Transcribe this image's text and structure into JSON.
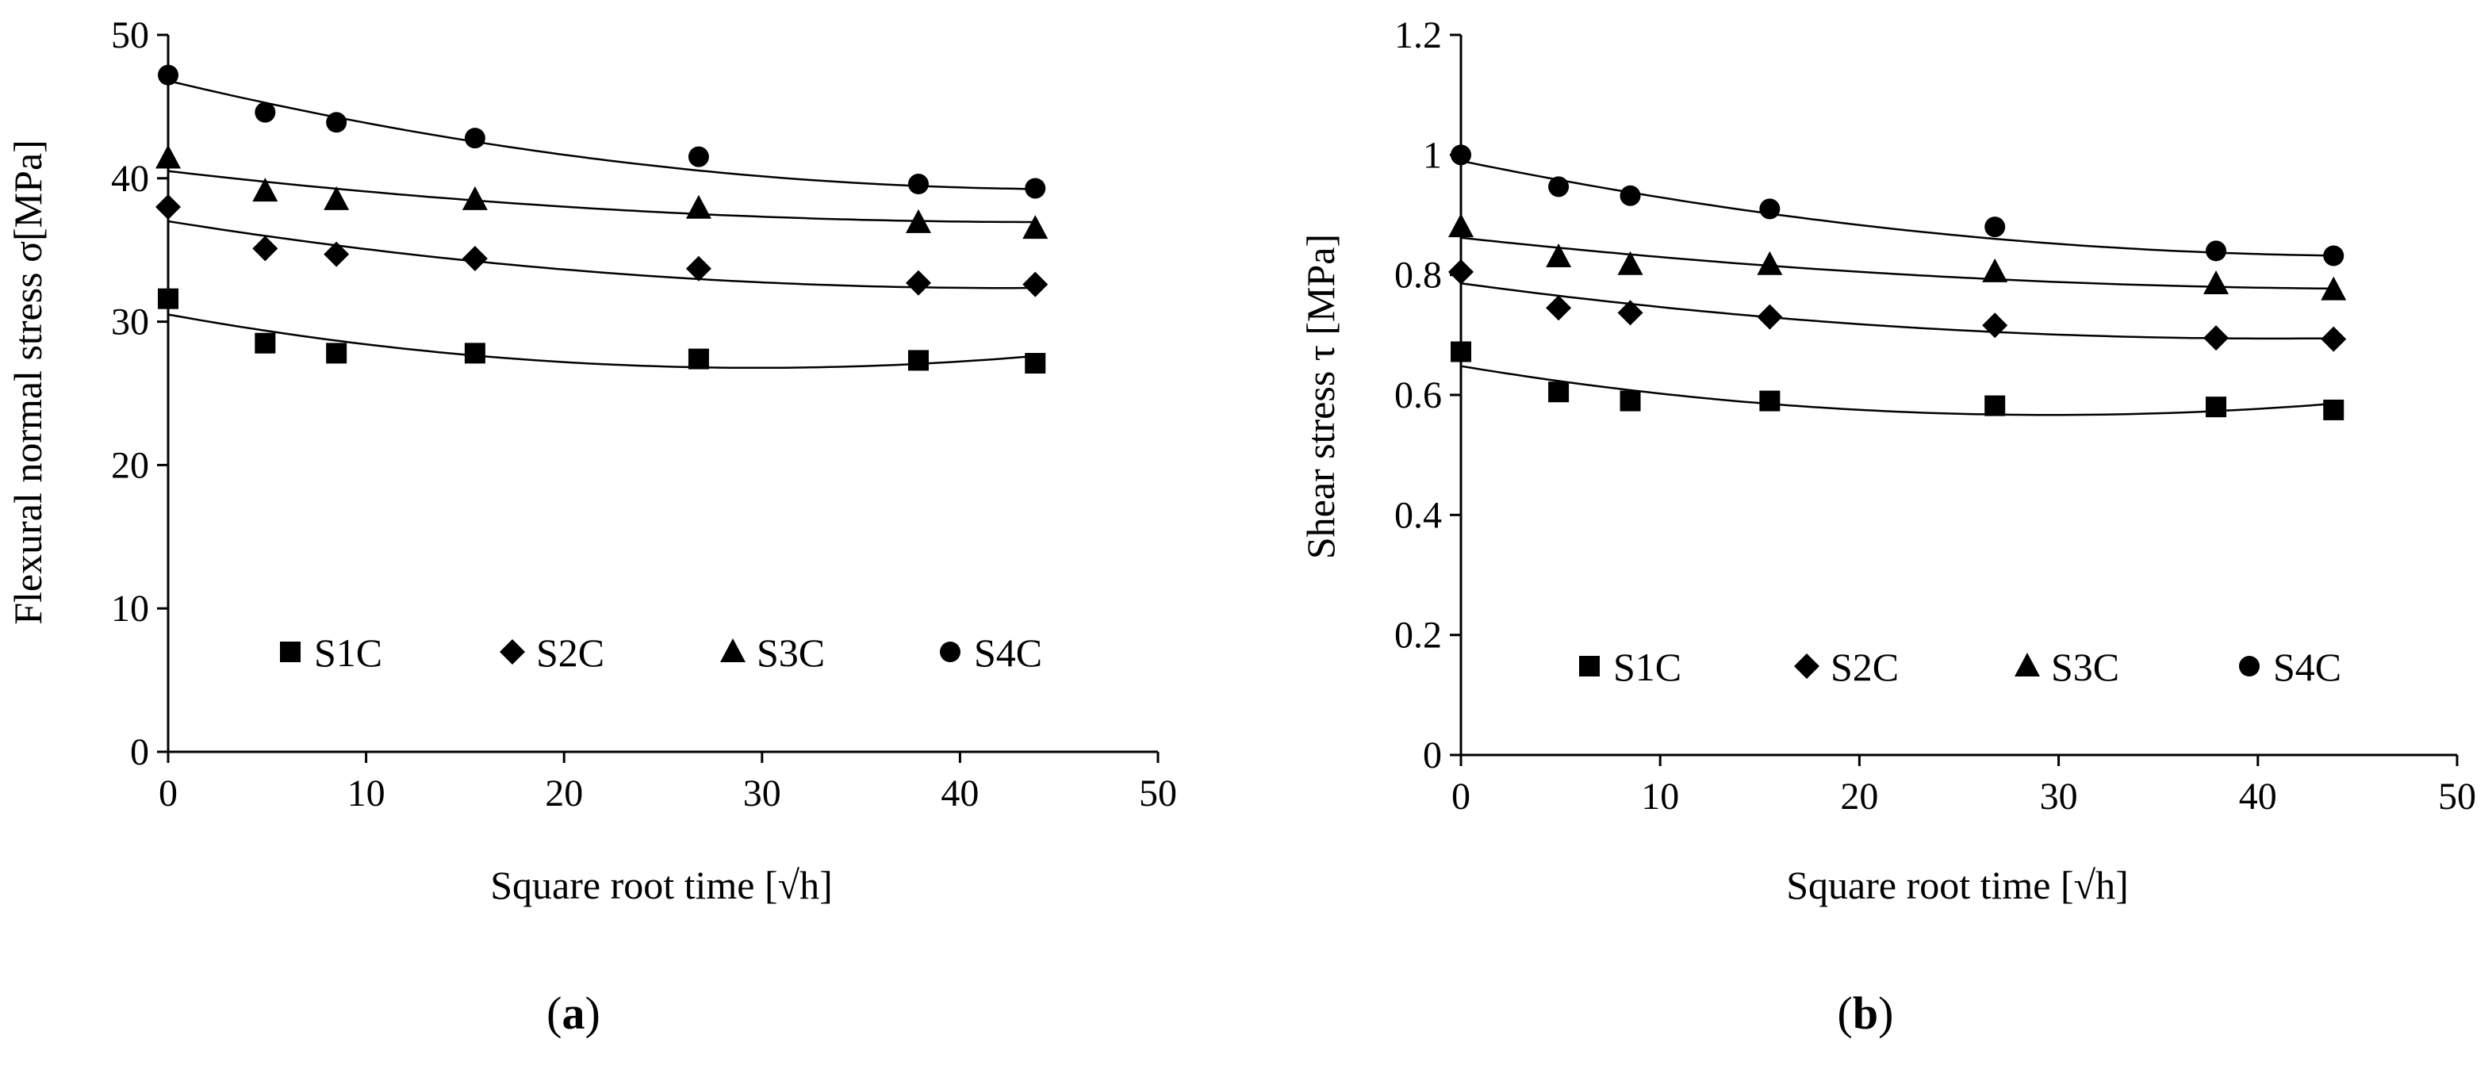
{
  "chart_data": [
    {
      "id": "a",
      "type": "scatter",
      "panel_label": "a",
      "xlabel": "Square root time [√h]",
      "ylabel": "Flexural normal stress σ[MPa]",
      "xlim": [
        0,
        50
      ],
      "ylim": [
        0,
        50
      ],
      "xticks": [
        0,
        10,
        20,
        30,
        40,
        50
      ],
      "yticks": [
        0,
        10,
        20,
        30,
        40,
        50
      ],
      "x": [
        0,
        4.9,
        8.5,
        15.5,
        26.8,
        37.9,
        43.8
      ],
      "series": [
        {
          "name": "S1C",
          "marker": "square",
          "values": [
            31.6,
            28.5,
            27.8,
            27.8,
            27.4,
            27.3,
            27.1
          ],
          "fit": [
            30.5,
            -0.25,
            0.0042
          ]
        },
        {
          "name": "S2C",
          "marker": "diamond",
          "values": [
            38.0,
            35.1,
            34.7,
            34.4,
            33.7,
            32.7,
            32.6
          ],
          "fit": [
            37.0,
            -0.22,
            0.0026
          ]
        },
        {
          "name": "S3C",
          "marker": "triangle",
          "values": [
            41.4,
            39.1,
            38.5,
            38.5,
            37.9,
            36.9,
            36.5
          ],
          "fit": [
            40.5,
            -0.16,
            0.0018
          ]
        },
        {
          "name": "S4C",
          "marker": "circle",
          "values": [
            47.2,
            44.6,
            43.9,
            42.8,
            41.5,
            39.6,
            39.3
          ],
          "fit": [
            46.8,
            -0.33,
            0.0036
          ]
        }
      ],
      "legend": "bottom"
    },
    {
      "id": "b",
      "type": "scatter",
      "panel_label": "b",
      "xlabel": "Square root time [√h]",
      "ylabel": "Shear stress τ [MPa]",
      "xlim": [
        0,
        50
      ],
      "ylim": [
        0,
        1.2
      ],
      "xticks": [
        0,
        10,
        20,
        30,
        40,
        50
      ],
      "yticks": [
        0,
        0.2,
        0.4,
        0.6,
        0.8,
        1,
        1.2
      ],
      "x": [
        0,
        4.9,
        8.5,
        15.5,
        26.8,
        37.9,
        43.8
      ],
      "series": [
        {
          "name": "S1C",
          "marker": "square",
          "values": [
            0.672,
            0.605,
            0.59,
            0.59,
            0.582,
            0.58,
            0.575
          ],
          "fit": [
            0.648,
            -0.0055,
            9.3e-05
          ]
        },
        {
          "name": "S2C",
          "marker": "diamond",
          "values": [
            0.805,
            0.745,
            0.737,
            0.73,
            0.716,
            0.695,
            0.693
          ],
          "fit": [
            0.786,
            -0.0045,
            5.5e-05
          ]
        },
        {
          "name": "S3C",
          "marker": "triangle",
          "values": [
            0.88,
            0.83,
            0.817,
            0.817,
            0.805,
            0.785,
            0.775
          ],
          "fit": [
            0.862,
            -0.0036,
            3.8e-05
          ]
        },
        {
          "name": "S4C",
          "marker": "circle",
          "values": [
            1.0,
            0.947,
            0.932,
            0.91,
            0.88,
            0.84,
            0.832
          ],
          "fit": [
            0.99,
            -0.0068,
            7.3e-05
          ]
        }
      ],
      "legend": "bottom"
    }
  ]
}
